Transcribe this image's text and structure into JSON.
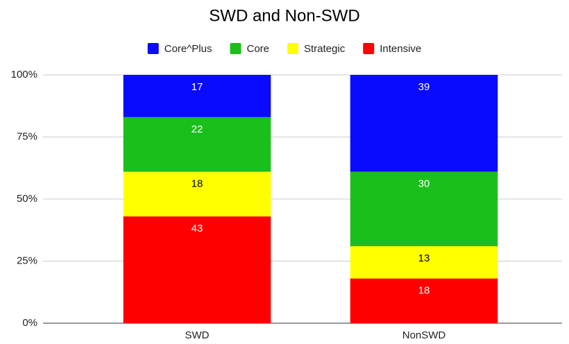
{
  "chart_data": {
    "type": "bar",
    "stacked": true,
    "title": "SWD and Non-SWD",
    "categories": [
      "SWD",
      "NonSWD"
    ],
    "series": [
      {
        "name": "Core^Plus",
        "color": "#0a0aff",
        "label_color": "#ffffff",
        "values": [
          17,
          39
        ]
      },
      {
        "name": "Core",
        "color": "#1bbf1b",
        "label_color": "#ffffff",
        "values": [
          22,
          30
        ]
      },
      {
        "name": "Strategic",
        "color": "#ffff00",
        "label_color": "#000000",
        "values": [
          18,
          13
        ]
      },
      {
        "name": "Intensive",
        "color": "#ff0000",
        "label_color": "#ffffff",
        "values": [
          43,
          18
        ]
      }
    ],
    "ylim": [
      0,
      100
    ],
    "yticks": [
      {
        "value": 0,
        "label": "0%"
      },
      {
        "value": 25,
        "label": "25%"
      },
      {
        "value": 50,
        "label": "50%"
      },
      {
        "value": 75,
        "label": "75%"
      },
      {
        "value": 100,
        "label": "100%"
      }
    ],
    "grid": true,
    "legend": "top"
  }
}
